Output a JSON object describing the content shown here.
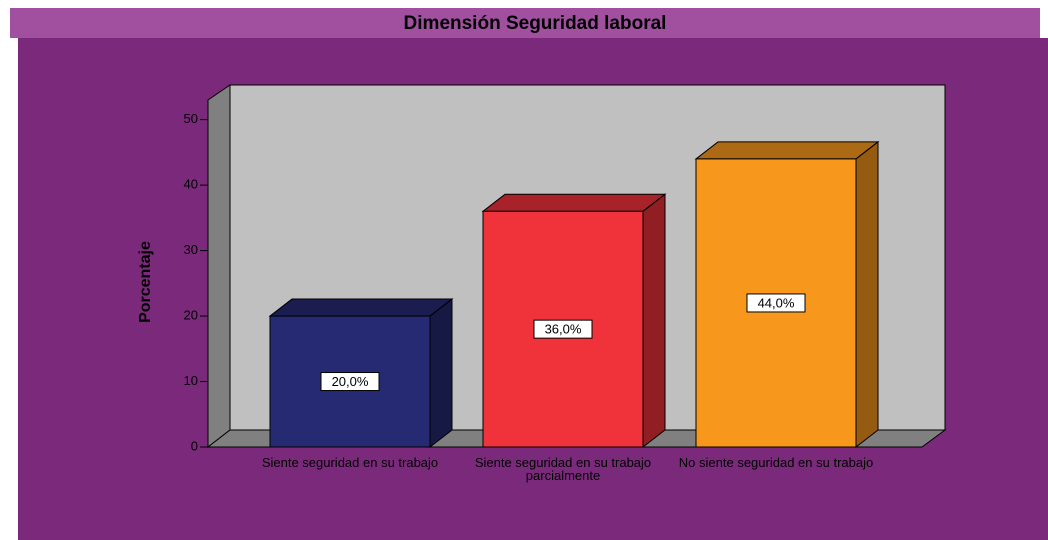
{
  "chart_data": {
    "type": "bar3d",
    "title": "Dimensión Seguridad laboral",
    "ylabel": "Porcentaje",
    "categories": [
      "Siente seguridad en su trabajo",
      "Siente seguridad en su trabajo parcialmente",
      "No siente seguridad en su trabajo"
    ],
    "values": [
      20,
      36,
      44
    ],
    "value_labels": [
      "20,0%",
      "36,0%",
      "44,0%"
    ],
    "colors": [
      "#262a73",
      "#f0323a",
      "#f7981d"
    ],
    "ylim": [
      0,
      53
    ],
    "yticks": [
      0,
      10,
      20,
      30,
      40,
      50
    ]
  }
}
